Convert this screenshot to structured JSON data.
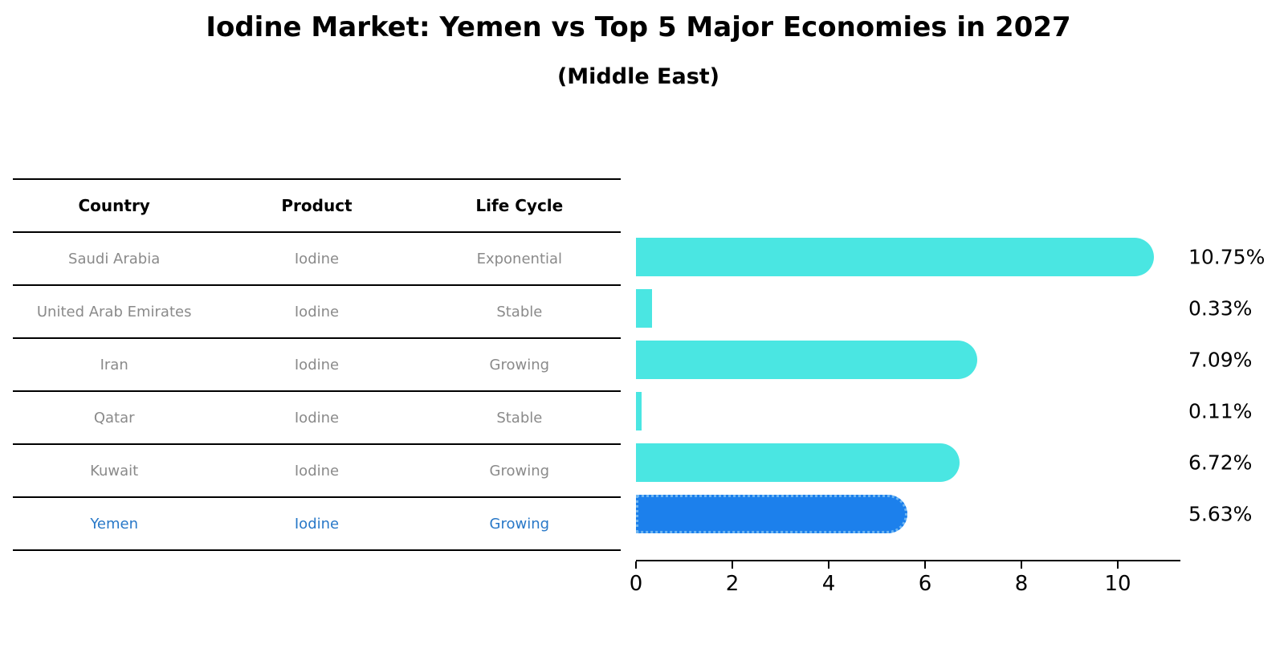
{
  "title": "Iodine Market: Yemen vs Top 5 Major Economies in 2027",
  "subtitle": "(Middle East)",
  "table": {
    "headers": [
      "Country",
      "Product",
      "Life Cycle"
    ],
    "rows": [
      {
        "country": "Saudi Arabia",
        "product": "Iodine",
        "life_cycle": "Exponential",
        "highlight": false
      },
      {
        "country": "United Arab Emirates",
        "product": "Iodine",
        "life_cycle": "Stable",
        "highlight": false
      },
      {
        "country": "Iran",
        "product": "Iodine",
        "life_cycle": "Growing",
        "highlight": false
      },
      {
        "country": "Qatar",
        "product": "Iodine",
        "life_cycle": "Stable",
        "highlight": false
      },
      {
        "country": "Kuwait",
        "product": "Iodine",
        "life_cycle": "Growing",
        "highlight": false
      },
      {
        "country": "Yemen",
        "product": "Iodine",
        "life_cycle": "Growing",
        "highlight": true
      }
    ]
  },
  "chart_data": {
    "type": "bar",
    "orientation": "horizontal",
    "title": "Iodine Market: Yemen vs Top 5 Major Economies in 2027",
    "subtitle": "(Middle East)",
    "categories": [
      "Saudi Arabia",
      "United Arab Emirates",
      "Iran",
      "Qatar",
      "Kuwait",
      "Yemen"
    ],
    "values": [
      10.75,
      0.33,
      7.09,
      0.11,
      6.72,
      5.63
    ],
    "value_labels": [
      "10.75%",
      "0.33%",
      "7.09%",
      "0.11%",
      "6.72%",
      "5.63%"
    ],
    "x_ticks": [
      "0",
      "2",
      "4",
      "6",
      "8",
      "10"
    ],
    "xlim": [
      0,
      11.3
    ],
    "grid": false,
    "legend": false,
    "highlight_index": 5
  },
  "colors": {
    "bar": "#4ae6e2",
    "highlight_bar": "#1c80ec",
    "highlight_border": "#6fb6f2",
    "highlight_text": "#2878c8",
    "cell_text": "#8a8a8a",
    "axis": "#000000"
  }
}
